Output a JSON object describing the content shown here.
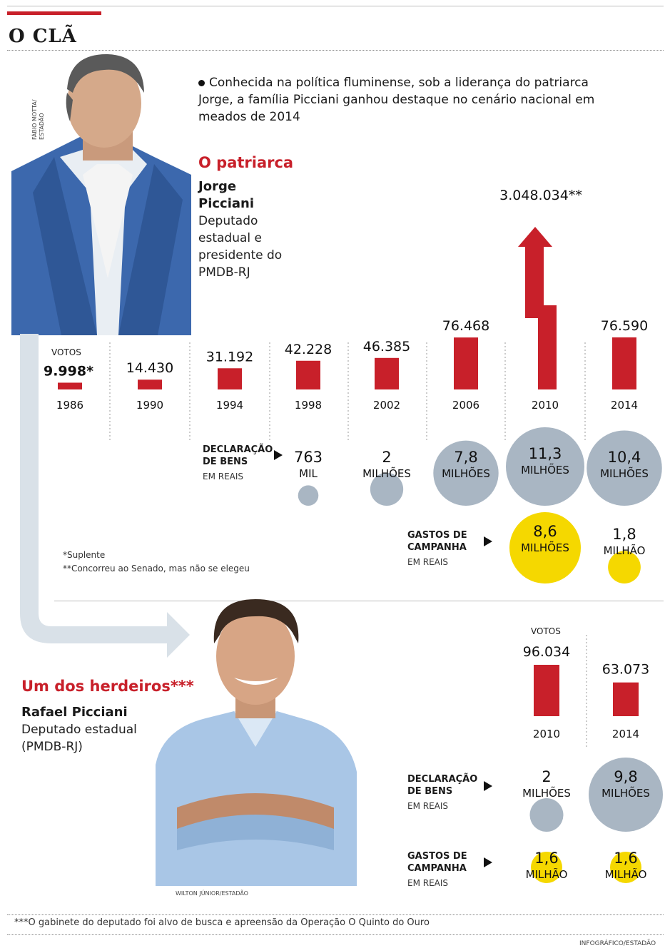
{
  "title": "O CLÃ",
  "intro": "Conhecida na política fluminense, sob a liderança do patriarca Jorge, a família Picciani ganhou destaque no cenário nacional em meados de 2014",
  "patriarch": {
    "section": "O patriarca",
    "name_line1": "Jorge",
    "name_line2": "Picciani",
    "role_lines": [
      "Deputado",
      "estadual e",
      "presidente do",
      "PMDB-RJ"
    ],
    "photo_credit": [
      "FÁBIO MOTTA/",
      "ESTADÃO"
    ]
  },
  "heir": {
    "section": "Um dos herdeiros***",
    "name": "Rafael Picciani",
    "role_lines": [
      "Deputado estadual",
      "(PMDB-RJ)"
    ],
    "photo_credit": "WILTON JÚNIOR/ESTADÃO"
  },
  "labels": {
    "votos": "VOTOS",
    "declaracao": [
      "DECLARAÇÃO",
      "DE BENS"
    ],
    "gastos": [
      "GASTOS DE",
      "CAMPANHA"
    ],
    "em_reais": "EM REAIS",
    "footnote1": "*Suplente",
    "footnote2": "**Concorreu ao Senado, mas não se elegeu",
    "footnote3": "***O gabinete do deputado foi alvo de busca e apreensão da Operação O Quinto do Ouro",
    "credit": "INFOGRÁFICO/ESTADÃO"
  },
  "colors": {
    "red": "#c8202a",
    "gray": "#a9b6c3",
    "yellow": "#f5d800",
    "arrow": "#d9e1e8"
  },
  "chart_data": [
    {
      "type": "bar",
      "title": "Jorge Picciani - Votos",
      "categories": [
        "1986",
        "1990",
        "1994",
        "1998",
        "2002",
        "2006",
        "2010",
        "2014"
      ],
      "values": [
        9998,
        14430,
        31192,
        42228,
        46385,
        76468,
        3048034,
        76590
      ],
      "value_labels": [
        "9.998*",
        "14.430",
        "31.192",
        "42.228",
        "46.385",
        "76.468",
        "3.048.034**",
        "76.590"
      ]
    },
    {
      "type": "scatter",
      "title": "Jorge Picciani - Declaração de bens (em reais)",
      "categories": [
        "1998",
        "2002",
        "2006",
        "2010",
        "2014"
      ],
      "values": [
        763000,
        2000000,
        7800000,
        11300000,
        10400000
      ],
      "labels": [
        [
          "763",
          "MIL"
        ],
        [
          "2",
          "MILHÕES"
        ],
        [
          "7,8",
          "MILHÕES"
        ],
        [
          "11,3",
          "MILHÕES"
        ],
        [
          "10,4",
          "MILHÕES"
        ]
      ]
    },
    {
      "type": "scatter",
      "title": "Jorge Picciani - Gastos de campanha (em reais)",
      "categories": [
        "2010",
        "2014"
      ],
      "values": [
        8600000,
        1800000
      ],
      "labels": [
        [
          "8,6",
          "MILHÕES"
        ],
        [
          "1,8",
          "MILHÃO"
        ]
      ]
    },
    {
      "type": "bar",
      "title": "Rafael Picciani - Votos",
      "categories": [
        "2010",
        "2014"
      ],
      "values": [
        96034,
        63073
      ],
      "value_labels": [
        "96.034",
        "63.073"
      ]
    },
    {
      "type": "scatter",
      "title": "Rafael Picciani - Declaração de bens (em reais)",
      "categories": [
        "2010",
        "2014"
      ],
      "values": [
        2000000,
        9800000
      ],
      "labels": [
        [
          "2",
          "MILHÕES"
        ],
        [
          "9,8",
          "MILHÕES"
        ]
      ]
    },
    {
      "type": "scatter",
      "title": "Rafael Picciani - Gastos de campanha (em reais)",
      "categories": [
        "2010",
        "2014"
      ],
      "values": [
        1600000,
        1600000
      ],
      "labels": [
        [
          "1,6",
          "MILHÃO"
        ],
        [
          "1,6",
          "MILHÃO"
        ]
      ]
    }
  ]
}
